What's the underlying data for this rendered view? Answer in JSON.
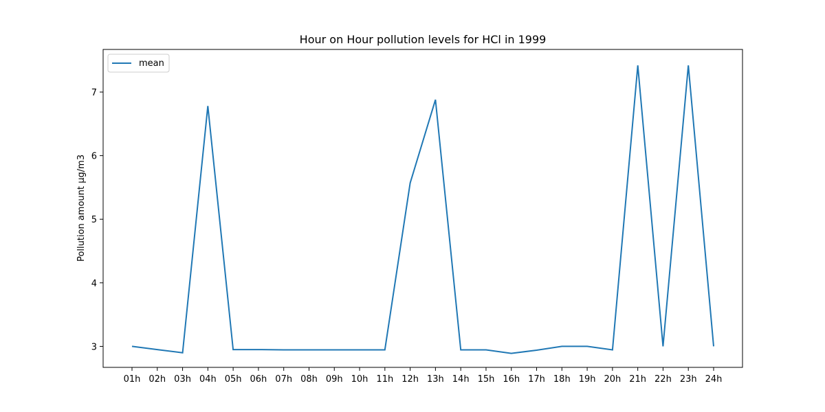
{
  "chart_data": {
    "type": "line",
    "title": "Hour on Hour pollution levels for HCl in 1999",
    "xlabel": "",
    "ylabel": "Pollution amount µg/m3",
    "categories": [
      "01h",
      "02h",
      "03h",
      "04h",
      "05h",
      "06h",
      "07h",
      "08h",
      "09h",
      "10h",
      "11h",
      "12h",
      "13h",
      "14h",
      "15h",
      "16h",
      "17h",
      "18h",
      "19h",
      "20h",
      "21h",
      "22h",
      "23h",
      "24h"
    ],
    "series": [
      {
        "name": "mean",
        "color": "#1f77b4",
        "values": [
          3.0,
          2.95,
          2.9,
          6.78,
          2.95,
          2.95,
          2.945,
          2.945,
          2.945,
          2.945,
          2.945,
          5.57,
          6.88,
          2.945,
          2.945,
          2.89,
          2.94,
          3.0,
          3.0,
          2.945,
          7.42,
          3.0,
          7.42,
          3.0
        ]
      }
    ],
    "ylim": [
      2.67,
      7.67
    ],
    "yticks": [
      3,
      4,
      5,
      6,
      7
    ],
    "grid": false,
    "legend": "top-left"
  }
}
